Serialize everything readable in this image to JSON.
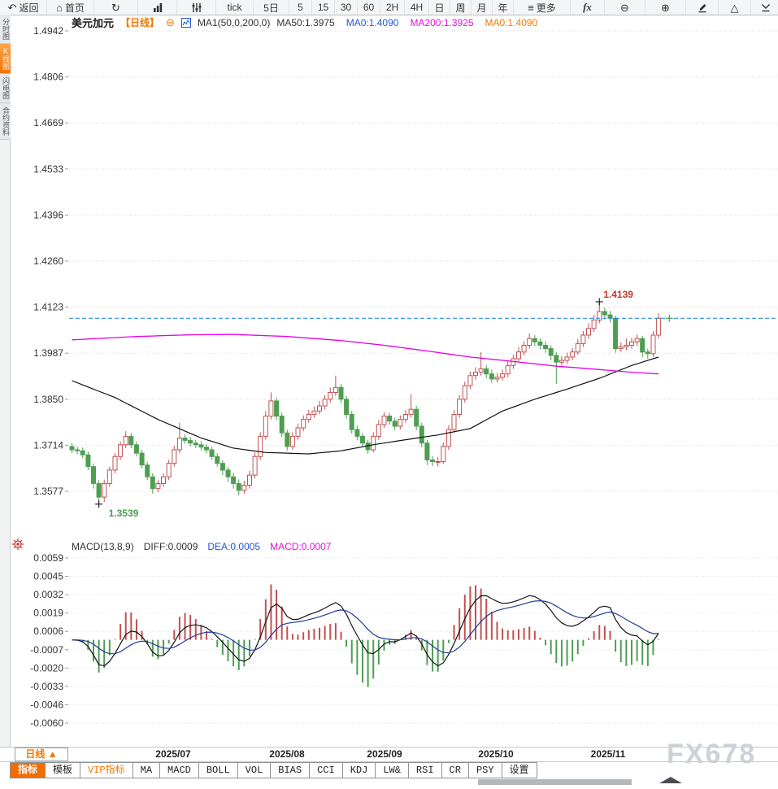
{
  "window": {
    "watermark": "FX678"
  },
  "icons": {
    "remove_overlay": "⊖"
  },
  "toolbar": {
    "items": [
      {
        "name": "back-button",
        "icon": "back",
        "glyph": "↶",
        "label": "返回"
      },
      {
        "name": "home-button",
        "icon": "home",
        "glyph": "⌂",
        "label": "首页"
      },
      {
        "name": "refresh-button",
        "icon": "refresh",
        "glyph": "↻",
        "label": ""
      },
      {
        "name": "chart-type-button",
        "icon": "bars",
        "label": ""
      },
      {
        "name": "indicator-settings-button",
        "icon": "sliders",
        "label": ""
      },
      {
        "name": "tf-tick-button",
        "label": "tick"
      },
      {
        "name": "tf-5d-button",
        "label": "5日"
      },
      {
        "name": "tf-5-button",
        "label": "5"
      },
      {
        "name": "tf-15-button",
        "label": "15"
      },
      {
        "name": "tf-30-button",
        "label": "30"
      },
      {
        "name": "tf-60-button",
        "label": "60"
      },
      {
        "name": "tf-2h-button",
        "label": "2H"
      },
      {
        "name": "tf-4h-button",
        "label": "4H"
      },
      {
        "name": "tf-day-button",
        "label": "日"
      },
      {
        "name": "tf-week-button",
        "label": "周"
      },
      {
        "name": "tf-month-button",
        "label": "月"
      },
      {
        "name": "tf-year-button",
        "label": "年"
      },
      {
        "name": "more-button",
        "icon": "menu",
        "glyph": "≡",
        "label": "更多"
      },
      {
        "name": "formula-button",
        "icon": "fx",
        "label": ""
      },
      {
        "name": "zoom-out-button",
        "icon": "zoomout",
        "glyph": "⊖",
        "label": ""
      },
      {
        "name": "zoom-in-button",
        "icon": "zoomin",
        "glyph": "⊕",
        "label": ""
      },
      {
        "name": "draw-button",
        "icon": "pencil",
        "label": ""
      },
      {
        "name": "shapes-button",
        "icon": "triangle",
        "glyph": "△",
        "label": ""
      },
      {
        "name": "collapse-button",
        "icon": "collapse",
        "label": ""
      }
    ]
  },
  "sidebar": {
    "tabs": [
      {
        "name": "tab-time-chart",
        "label": "分时图",
        "active": false
      },
      {
        "name": "tab-kline-chart",
        "label": "K线图",
        "active": true
      },
      {
        "name": "tab-lightning-chart",
        "label": "闪电图",
        "active": false
      },
      {
        "name": "tab-contract-info",
        "label": "合约资料",
        "active": false
      }
    ]
  },
  "chart_header": {
    "symbol": "美元加元",
    "period": "【日线】",
    "ma_settings": "MA1(50,0,200,0)",
    "legend": [
      {
        "label": "MA50:1.3975",
        "color": "#333333"
      },
      {
        "label": "MA0:1.4090",
        "color": "#2257d9"
      },
      {
        "label": "MA200:1.3925",
        "color": "#e011e0"
      },
      {
        "label": "MA0:1.4090",
        "color": "#f07a00"
      }
    ]
  },
  "chart_data": {
    "type": "candlestick",
    "title": "美元加元 日线 (USD/CAD Daily)",
    "y_ticks": [
      1.4942,
      1.4806,
      1.4669,
      1.4533,
      1.4396,
      1.426,
      1.4123,
      1.3987,
      1.385,
      1.3714,
      1.3577
    ],
    "x_labels": [
      "2025/07",
      "2025/08",
      "2025/09",
      "2025/10",
      "2025/11"
    ],
    "current_price": 1.409,
    "annotations": [
      {
        "text": "1.4139",
        "price": 1.4139,
        "candle_index": 98,
        "type": "high",
        "color": "#c0392b",
        "marker_color": "#222222"
      },
      {
        "text": "1.3539",
        "price": 1.3539,
        "candle_index": 5,
        "type": "low",
        "color": "#4f9d4f",
        "marker_color": "#222222"
      },
      {
        "text": "",
        "price": 1.409,
        "candle_index": 111,
        "type": "current",
        "color": "#54a054",
        "marker_color": "#54a054"
      }
    ],
    "colors": {
      "up": "#c25050",
      "down": "#4e9e52",
      "ma50": "#111111",
      "ma200": "#e800e8",
      "price_line": "#2d8cf0"
    },
    "candles": [
      [
        1.371,
        1.372,
        1.369,
        1.37
      ],
      [
        1.37,
        1.371,
        1.3687,
        1.3697
      ],
      [
        1.3697,
        1.3707,
        1.3675,
        1.3685
      ],
      [
        1.3685,
        1.3695,
        1.364,
        1.365
      ],
      [
        1.365,
        1.366,
        1.3585,
        1.36
      ],
      [
        1.36,
        1.361,
        1.3539,
        1.356
      ],
      [
        1.356,
        1.3612,
        1.3545,
        1.36
      ],
      [
        1.36,
        1.365,
        1.359,
        1.364
      ],
      [
        1.364,
        1.369,
        1.363,
        1.368
      ],
      [
        1.368,
        1.3725,
        1.367,
        1.3715
      ],
      [
        1.3715,
        1.3755,
        1.3705,
        1.374
      ],
      [
        1.374,
        1.375,
        1.3705,
        1.3715
      ],
      [
        1.3715,
        1.3725,
        1.368,
        1.369
      ],
      [
        1.369,
        1.37,
        1.3645,
        1.3655
      ],
      [
        1.3655,
        1.3665,
        1.361,
        1.362
      ],
      [
        1.362,
        1.363,
        1.357,
        1.3585
      ],
      [
        1.3585,
        1.361,
        1.3575,
        1.36
      ],
      [
        1.36,
        1.363,
        1.359,
        1.362
      ],
      [
        1.362,
        1.367,
        1.361,
        1.366
      ],
      [
        1.366,
        1.3712,
        1.365,
        1.37
      ],
      [
        1.37,
        1.378,
        1.369,
        1.3735
      ],
      [
        1.3735,
        1.3745,
        1.3718,
        1.3728
      ],
      [
        1.3728,
        1.3738,
        1.371,
        1.372
      ],
      [
        1.372,
        1.373,
        1.3705,
        1.3715
      ],
      [
        1.3715,
        1.3725,
        1.3698,
        1.3708
      ],
      [
        1.3708,
        1.3718,
        1.369,
        1.37
      ],
      [
        1.37,
        1.371,
        1.367,
        1.368
      ],
      [
        1.368,
        1.369,
        1.365,
        1.366
      ],
      [
        1.366,
        1.367,
        1.3625,
        1.364
      ],
      [
        1.364,
        1.365,
        1.3605,
        1.362
      ],
      [
        1.362,
        1.3632,
        1.3585,
        1.36
      ],
      [
        1.36,
        1.3612,
        1.3565,
        1.358
      ],
      [
        1.358,
        1.3608,
        1.357,
        1.3595
      ],
      [
        1.3595,
        1.3638,
        1.3585,
        1.3625
      ],
      [
        1.3625,
        1.3692,
        1.3615,
        1.368
      ],
      [
        1.368,
        1.3752,
        1.367,
        1.374
      ],
      [
        1.374,
        1.3815,
        1.373,
        1.38
      ],
      [
        1.38,
        1.387,
        1.379,
        1.3845
      ],
      [
        1.3845,
        1.3855,
        1.3788,
        1.38
      ],
      [
        1.38,
        1.381,
        1.3738,
        1.375
      ],
      [
        1.375,
        1.376,
        1.3698,
        1.371
      ],
      [
        1.371,
        1.3752,
        1.37,
        1.374
      ],
      [
        1.374,
        1.3778,
        1.373,
        1.3765
      ],
      [
        1.3765,
        1.3802,
        1.3755,
        1.379
      ],
      [
        1.379,
        1.3818,
        1.378,
        1.3805
      ],
      [
        1.3805,
        1.3828,
        1.3795,
        1.3815
      ],
      [
        1.3815,
        1.3845,
        1.3805,
        1.383
      ],
      [
        1.383,
        1.3862,
        1.382,
        1.385
      ],
      [
        1.385,
        1.3885,
        1.384,
        1.387
      ],
      [
        1.387,
        1.392,
        1.386,
        1.3885
      ],
      [
        1.3885,
        1.3895,
        1.3838,
        1.385
      ],
      [
        1.385,
        1.386,
        1.3792,
        1.3805
      ],
      [
        1.3805,
        1.3815,
        1.3748,
        1.376
      ],
      [
        1.376,
        1.3772,
        1.3728,
        1.374
      ],
      [
        1.374,
        1.375,
        1.3708,
        1.372
      ],
      [
        1.372,
        1.373,
        1.3688,
        1.37
      ],
      [
        1.37,
        1.3752,
        1.3692,
        1.374
      ],
      [
        1.374,
        1.3788,
        1.373,
        1.3775
      ],
      [
        1.3775,
        1.3812,
        1.3765,
        1.38
      ],
      [
        1.38,
        1.381,
        1.3775,
        1.3785
      ],
      [
        1.3785,
        1.3795,
        1.3758,
        1.377
      ],
      [
        1.377,
        1.3802,
        1.376,
        1.379
      ],
      [
        1.379,
        1.3818,
        1.378,
        1.3805
      ],
      [
        1.3805,
        1.3865,
        1.3795,
        1.382
      ],
      [
        1.382,
        1.383,
        1.3758,
        1.377
      ],
      [
        1.377,
        1.378,
        1.3708,
        1.372
      ],
      [
        1.372,
        1.373,
        1.3655,
        1.367
      ],
      [
        1.367,
        1.3682,
        1.3652,
        1.3665
      ],
      [
        1.3665,
        1.3678,
        1.365,
        1.3665
      ],
      [
        1.3665,
        1.3722,
        1.3658,
        1.371
      ],
      [
        1.371,
        1.3772,
        1.37,
        1.376
      ],
      [
        1.376,
        1.3818,
        1.375,
        1.3805
      ],
      [
        1.3805,
        1.3862,
        1.3795,
        1.385
      ],
      [
        1.385,
        1.3902,
        1.384,
        1.389
      ],
      [
        1.389,
        1.3932,
        1.388,
        1.392
      ],
      [
        1.392,
        1.3945,
        1.3908,
        1.393
      ],
      [
        1.393,
        1.399,
        1.392,
        1.394
      ],
      [
        1.394,
        1.3952,
        1.3912,
        1.3925
      ],
      [
        1.3925,
        1.3938,
        1.3898,
        1.391
      ],
      [
        1.391,
        1.3928,
        1.39,
        1.3915
      ],
      [
        1.3915,
        1.3938,
        1.3905,
        1.3925
      ],
      [
        1.3925,
        1.3962,
        1.3915,
        1.395
      ],
      [
        1.395,
        1.3982,
        1.394,
        1.397
      ],
      [
        1.397,
        1.4005,
        1.396,
        1.399
      ],
      [
        1.399,
        1.4022,
        1.398,
        1.401
      ],
      [
        1.401,
        1.4045,
        1.4,
        1.403
      ],
      [
        1.403,
        1.404,
        1.4008,
        1.402
      ],
      [
        1.402,
        1.403,
        1.3998,
        1.401
      ],
      [
        1.401,
        1.4022,
        1.3988,
        1.4
      ],
      [
        1.4,
        1.401,
        1.3965,
        1.398
      ],
      [
        1.398,
        1.399,
        1.3895,
        1.396
      ],
      [
        1.396,
        1.3978,
        1.395,
        1.3965
      ],
      [
        1.3965,
        1.3988,
        1.3955,
        1.3975
      ],
      [
        1.3975,
        1.4002,
        1.3965,
        1.399
      ],
      [
        1.399,
        1.4028,
        1.3982,
        1.4015
      ],
      [
        1.4015,
        1.4052,
        1.4005,
        1.404
      ],
      [
        1.404,
        1.4075,
        1.403,
        1.406
      ],
      [
        1.406,
        1.41,
        1.405,
        1.4085
      ],
      [
        1.4085,
        1.4139,
        1.4075,
        1.411
      ],
      [
        1.411,
        1.4122,
        1.4088,
        1.41
      ],
      [
        1.41,
        1.4112,
        1.4078,
        1.409
      ],
      [
        1.409,
        1.4098,
        1.3988,
        1.4
      ],
      [
        1.4,
        1.4018,
        1.399,
        1.4005
      ],
      [
        1.4005,
        1.403,
        1.3995,
        1.401
      ],
      [
        1.401,
        1.4032,
        1.4,
        1.402
      ],
      [
        1.402,
        1.4042,
        1.4008,
        1.403
      ],
      [
        1.403,
        1.4038,
        1.3975,
        1.399
      ],
      [
        1.399,
        1.4,
        1.397,
        1.3985
      ],
      [
        1.3985,
        1.4052,
        1.3975,
        1.404
      ],
      [
        1.404,
        1.4105,
        1.403,
        1.409
      ]
    ],
    "ma50_waypoints": [
      [
        0,
        1.3905
      ],
      [
        8,
        1.3855
      ],
      [
        16,
        1.379
      ],
      [
        24,
        1.3735
      ],
      [
        30,
        1.3705
      ],
      [
        36,
        1.3692
      ],
      [
        44,
        1.3688
      ],
      [
        50,
        1.3697
      ],
      [
        56,
        1.3715
      ],
      [
        62,
        1.373
      ],
      [
        68,
        1.3744
      ],
      [
        74,
        1.3763
      ],
      [
        80,
        1.3815
      ],
      [
        86,
        1.385
      ],
      [
        92,
        1.388
      ],
      [
        98,
        1.3912
      ],
      [
        104,
        1.395
      ],
      [
        109,
        1.3975
      ]
    ],
    "ma200_waypoints": [
      [
        0,
        1.4026
      ],
      [
        12,
        1.4036
      ],
      [
        22,
        1.4041
      ],
      [
        30,
        1.4042
      ],
      [
        40,
        1.4036
      ],
      [
        50,
        1.4024
      ],
      [
        58,
        1.401
      ],
      [
        66,
        1.3993
      ],
      [
        74,
        1.3975
      ],
      [
        82,
        1.3962
      ],
      [
        90,
        1.3948
      ],
      [
        98,
        1.3938
      ],
      [
        104,
        1.393
      ],
      [
        109,
        1.3925
      ]
    ]
  },
  "macd": {
    "title": "MACD(13,8,9)",
    "params": {
      "short": 8,
      "long": 13,
      "signal": 9
    },
    "diff": {
      "label": "DIFF:0.0009",
      "value": 0.0009,
      "color": "#333333"
    },
    "dea": {
      "label": "DEA:0.0005",
      "value": 0.0005,
      "color": "#2257d9"
    },
    "macd": {
      "label": "MACD:0.0007",
      "value": 0.0007,
      "color": "#e011e0"
    },
    "y_ticks": [
      0.0059,
      0.0045,
      0.0032,
      0.0019,
      0.0006,
      -0.0007,
      -0.002,
      -0.0033,
      -0.0046,
      -0.006
    ],
    "colors": {
      "diff_line": "#141414",
      "dea_line": "#1f3d99",
      "hist_up": "#c25050",
      "hist_down": "#4e9e52"
    }
  },
  "bottom": {
    "period_selector": "日线 ▲",
    "tabs": [
      {
        "name": "tab-indicators",
        "label": "指标",
        "state": "active"
      },
      {
        "name": "tab-templates",
        "label": "模板",
        "state": "normal"
      },
      {
        "name": "tab-vip-indicators",
        "label": "VIP指标",
        "state": "vip"
      },
      {
        "name": "tab-ma",
        "label": "MA",
        "state": "normal"
      },
      {
        "name": "tab-macd",
        "label": "MACD",
        "state": "normal"
      },
      {
        "name": "tab-boll",
        "label": "BOLL",
        "state": "normal"
      },
      {
        "name": "tab-vol",
        "label": "VOL",
        "state": "normal"
      },
      {
        "name": "tab-bias",
        "label": "BIAS",
        "state": "normal"
      },
      {
        "name": "tab-cci",
        "label": "CCI",
        "state": "normal"
      },
      {
        "name": "tab-kdj",
        "label": "KDJ",
        "state": "normal"
      },
      {
        "name": "tab-lw",
        "label": "LW&",
        "state": "normal"
      },
      {
        "name": "tab-rsi",
        "label": "RSI",
        "state": "normal"
      },
      {
        "name": "tab-cr",
        "label": "CR",
        "state": "normal"
      },
      {
        "name": "tab-psy",
        "label": "PSY",
        "state": "normal"
      },
      {
        "name": "tab-settings",
        "label": "设置",
        "state": "normal"
      }
    ]
  }
}
